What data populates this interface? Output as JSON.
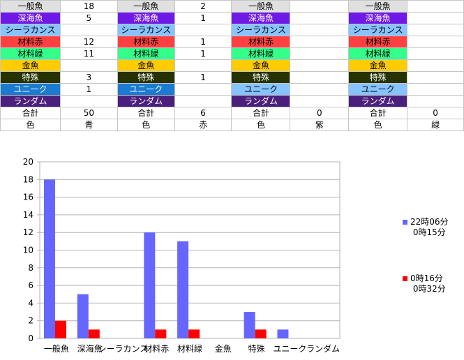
{
  "table": {
    "rows": [
      {
        "label": "一般魚",
        "bg": "#e0e0e0",
        "fg": "#000000",
        "values": [
          "18",
          "2",
          "",
          ""
        ]
      },
      {
        "label": "深海魚",
        "bg": "#6f19e6",
        "fg": "#ffffff",
        "values": [
          "5",
          "1",
          "",
          ""
        ]
      },
      {
        "label": "シーラカンス",
        "bg": "#86c3ff",
        "fg": "#000000",
        "values": [
          "",
          "",
          "",
          ""
        ]
      },
      {
        "label": "材料赤",
        "bg": "#ff4040",
        "fg": "#000000",
        "values": [
          "12",
          "1",
          "",
          ""
        ]
      },
      {
        "label": "材料緑",
        "bg": "#33ff8a",
        "fg": "#000000",
        "values": [
          "11",
          "1",
          "",
          ""
        ]
      },
      {
        "label": "金魚",
        "bg": "#ffcc00",
        "fg": "#000000",
        "values": [
          "",
          "",
          "",
          ""
        ]
      },
      {
        "label": "特殊",
        "bg": "#263300",
        "fg": "#ffffff",
        "values": [
          "3",
          "1",
          "",
          ""
        ]
      },
      {
        "label": "ユニーク",
        "bg": "#1a7bd0",
        "fg": "#ffffff",
        "values": [
          "1",
          "",
          "",
          ""
        ]
      },
      {
        "label": "ランダム",
        "bg": "#4b1f7c",
        "fg": "#ffffff",
        "values": [
          "",
          "",
          "",
          ""
        ]
      },
      {
        "label": "合計",
        "bg": "#ffffff",
        "fg": "#000000",
        "values": [
          "50",
          "6",
          "0",
          "0"
        ]
      },
      {
        "label": "色",
        "bg": "#ffffff",
        "fg": "#000000",
        "values": [
          "青",
          "赤",
          "紫",
          "緑"
        ]
      }
    ],
    "alt_colors": {
      "unique_light": "#86c3ff"
    }
  },
  "chart_data": {
    "type": "bar",
    "categories": [
      "一般魚",
      "深海魚",
      "シーラカンス",
      "材料赤",
      "材料緑",
      "金魚",
      "特殊",
      "ユニーク",
      "ランダム"
    ],
    "series": [
      {
        "name": "22時06分\n0時15分",
        "legend_lines": [
          "22時06分",
          "0時15分"
        ],
        "color": "#6666ff",
        "values": [
          18,
          5,
          0,
          12,
          11,
          0,
          3,
          1,
          0
        ]
      },
      {
        "name": "0時16分\n0時32分",
        "legend_lines": [
          "0時16分",
          "0時32分"
        ],
        "color": "#ff0000",
        "values": [
          2,
          1,
          0,
          1,
          1,
          0,
          1,
          0,
          0
        ]
      }
    ],
    "ylim": [
      0,
      20
    ],
    "yticks": [
      0,
      2,
      4,
      6,
      8,
      10,
      12,
      14,
      16,
      18,
      20
    ],
    "grid": true,
    "legend_position": "right"
  }
}
